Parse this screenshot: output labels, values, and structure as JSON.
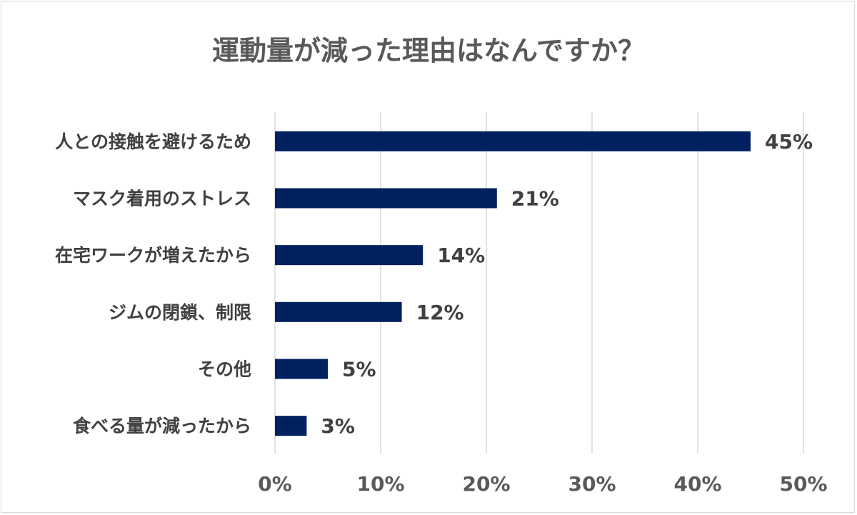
{
  "chart_data": {
    "type": "bar",
    "orientation": "horizontal",
    "title": "運動量が減った理由はなんですか？",
    "categories": [
      "人との接触を避けるため",
      "マスク着用のストレス",
      "在宅ワークが増えたから",
      "ジムの閉鎖、制限",
      "その他",
      "食べる量が減ったから"
    ],
    "values": [
      45,
      21,
      14,
      12,
      5,
      3
    ],
    "value_labels": [
      "45%",
      "21%",
      "14%",
      "12%",
      "5%",
      "3%"
    ],
    "xlim": [
      0,
      50
    ],
    "xticks": [
      0,
      10,
      20,
      30,
      40,
      50
    ],
    "xtick_labels": [
      "0%",
      "10%",
      "20%",
      "30%",
      "40%",
      "50%"
    ],
    "unit": "%",
    "grid": true,
    "bar_color": "#002060",
    "legend": "none"
  }
}
